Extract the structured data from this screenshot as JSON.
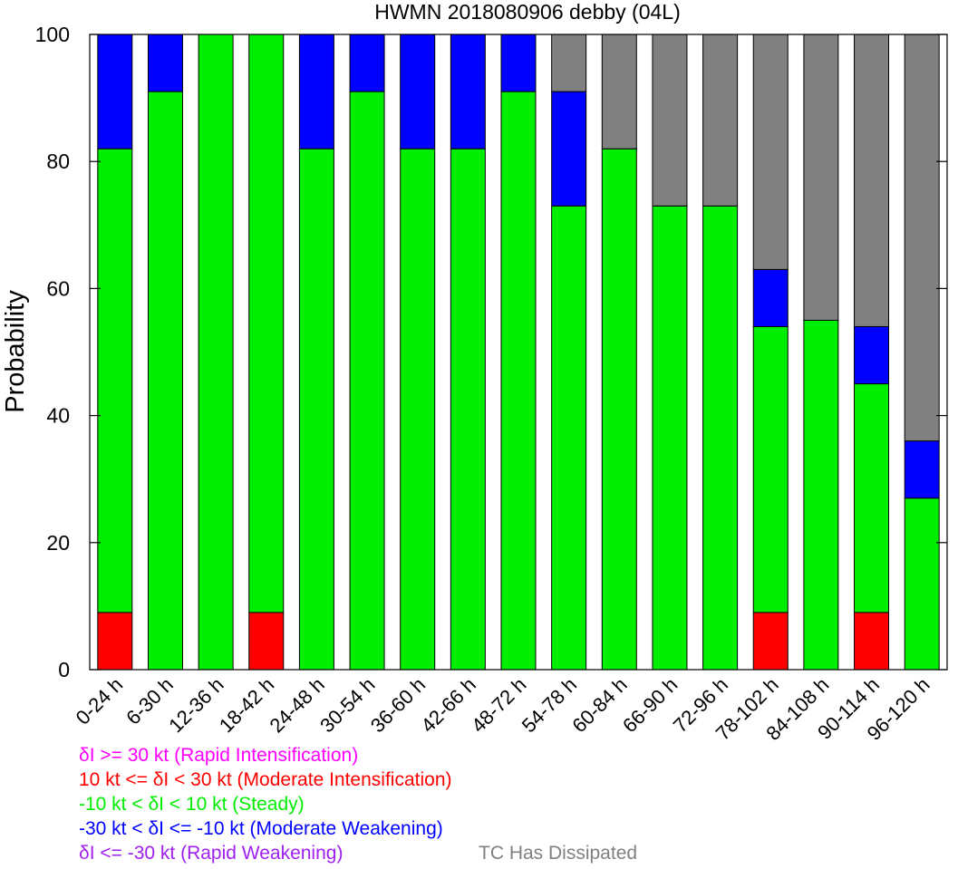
{
  "chart_data": {
    "type": "bar",
    "stacked": true,
    "title": "HWMN 2018080906 debby (04L)",
    "ylabel": "Probability",
    "ylim": [
      0,
      100
    ],
    "yticks": [
      "0",
      "20",
      "40",
      "60",
      "80",
      "100"
    ],
    "categories": [
      "0-24 h",
      "6-30 h",
      "12-36 h",
      "18-42 h",
      "24-48 h",
      "30-54 h",
      "36-60 h",
      "42-66 h",
      "48-72 h",
      "54-78 h",
      "60-84 h",
      "66-90 h",
      "72-96 h",
      "78-102 h",
      "84-108 h",
      "90-114 h",
      "96-120 h"
    ],
    "series": [
      {
        "key": "ri",
        "color": "#ff00ff",
        "values": [
          0,
          0,
          0,
          0,
          0,
          0,
          0,
          0,
          0,
          0,
          0,
          0,
          0,
          0,
          0,
          0,
          0
        ]
      },
      {
        "key": "mi",
        "color": "#ff0000",
        "values": [
          9,
          0,
          0,
          9,
          0,
          0,
          0,
          0,
          0,
          0,
          0,
          0,
          0,
          9,
          0,
          9,
          0
        ]
      },
      {
        "key": "steady",
        "color": "#00ee00",
        "values": [
          73,
          91,
          100,
          91,
          82,
          91,
          82,
          82,
          91,
          73,
          82,
          73,
          73,
          45,
          55,
          36,
          27
        ]
      },
      {
        "key": "mw",
        "color": "#0000ff",
        "values": [
          18,
          9,
          0,
          0,
          18,
          9,
          18,
          18,
          9,
          18,
          0,
          0,
          0,
          9,
          0,
          9,
          9
        ]
      },
      {
        "key": "rw",
        "color": "#a020f0",
        "values": [
          0,
          0,
          0,
          0,
          0,
          0,
          0,
          0,
          0,
          0,
          0,
          0,
          0,
          0,
          0,
          0,
          0
        ]
      },
      {
        "key": "dissipated",
        "color": "#808080",
        "values": [
          0,
          0,
          0,
          0,
          0,
          0,
          0,
          0,
          0,
          9,
          18,
          27,
          27,
          37,
          45,
          46,
          64
        ]
      }
    ],
    "legend": [
      {
        "text": "δI >= 30 kt (Rapid Intensification)",
        "color": "#ff00ff"
      },
      {
        "text": "10 kt <= δI < 30 kt (Moderate Intensification)",
        "color": "#ff0000"
      },
      {
        "text": "-10 kt < δI < 10 kt (Steady)",
        "color": "#00ee00"
      },
      {
        "text": "-30 kt < δI <= -10 kt (Moderate Weakening)",
        "color": "#0000ff"
      },
      {
        "text": "δI <= -30 kt (Rapid Weakening)",
        "color": "#a020f0"
      },
      {
        "text": "TC Has Dissipated",
        "color": "#808080"
      }
    ]
  }
}
